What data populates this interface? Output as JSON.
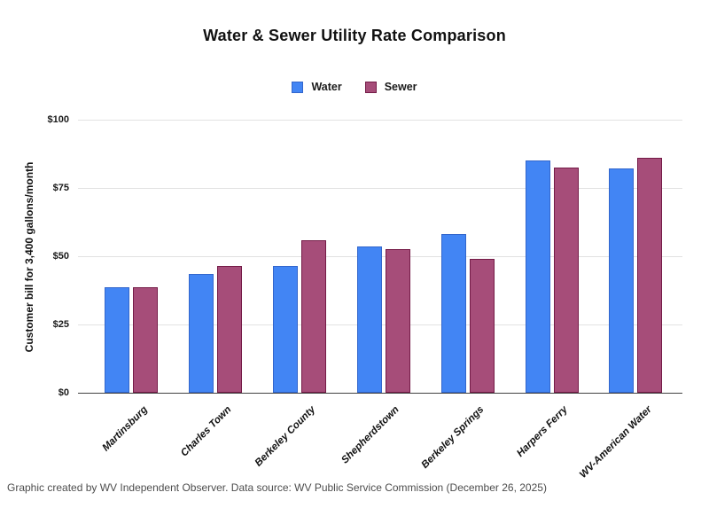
{
  "title": "Water & Sewer Utility Rate Comparison",
  "footer": "Graphic created by WV Independent Observer. Data source: WV Public Service Commission (December 26, 2025)",
  "legend": [
    {
      "label": "Water",
      "color": "#4285f4",
      "border_color": "#3266cc"
    },
    {
      "label": "Sewer",
      "color": "#a64d79",
      "border_color": "#741b47"
    }
  ],
  "chart_data": {
    "type": "bar",
    "title": "Water & Sewer Utility Rate Comparison",
    "categories": [
      "Martinsburg",
      "Charles Town",
      "Berkeley County",
      "Shepherdstown",
      "Berkeley Springs",
      "Harpers Ferry",
      "WV-American Water"
    ],
    "series": [
      {
        "name": "Water",
        "color": "#4285f4",
        "border_color": "#3266cc",
        "values": [
          38.5,
          43.5,
          46.5,
          53.5,
          58,
          85,
          82
        ]
      },
      {
        "name": "Sewer",
        "color": "#a64d79",
        "border_color": "#741b47",
        "values": [
          38.5,
          46.5,
          56,
          52.5,
          49,
          82.5,
          86
        ]
      }
    ],
    "xlabel": "",
    "ylabel": "Customer bill for 3,400 gallons/month",
    "ylim": [
      0,
      100
    ],
    "ytick_values": [
      0,
      25,
      50,
      75,
      100
    ],
    "ytick_labels": [
      "$0",
      "$25",
      "$50",
      "$75",
      "$100"
    ],
    "grid": true,
    "legend_position": "top-center"
  }
}
